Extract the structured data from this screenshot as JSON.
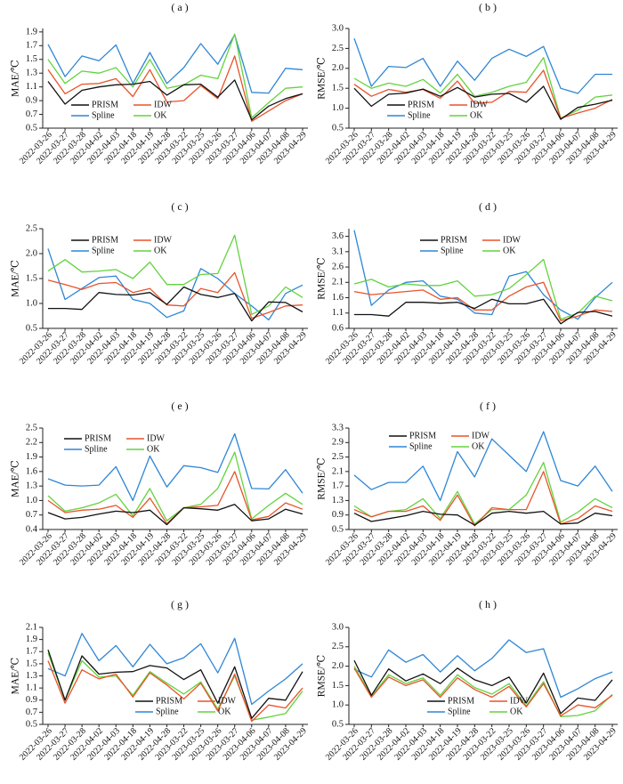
{
  "figure": {
    "series_colors": {
      "PRISM": "#111111",
      "IDW": "#e8532b",
      "Spline": "#2e86d6",
      "OK": "#62d33e"
    },
    "x_dates": [
      "2022-03-26",
      "2022-03-27",
      "2022-03-28",
      "2022-04-02",
      "2022-04-03",
      "2022-04-18",
      "2022-04-19",
      "2022-04-28",
      "2023-03-22",
      "2023-03-25",
      "2023-03-26",
      "2023-03-27",
      "2023-04-06",
      "2023-04-07",
      "2023-04-08",
      "2023-04-29"
    ]
  },
  "chart_data": [
    {
      "panel_label": "( a )",
      "type": "line",
      "ylabel": "MAE/℃",
      "ylim": [
        0.5,
        1.95
      ],
      "yticks": [
        "0.5",
        "0.7",
        "0.9",
        "1.1",
        "1.3",
        "1.5",
        "1.7",
        "1.9"
      ],
      "x": [
        "2022-03-26",
        "2022-03-27",
        "2022-03-28",
        "2022-04-02",
        "2022-04-03",
        "2022-04-18",
        "2022-04-19",
        "2022-04-28",
        "2023-03-22",
        "2023-03-25",
        "2023-03-26",
        "2023-03-27",
        "2023-04-06",
        "2023-04-07",
        "2023-04-08",
        "2023-04-29"
      ],
      "legend": {
        "position": "bottom-center-left",
        "entries": [
          "PRISM",
          "IDW",
          "Spline",
          "OK"
        ]
      },
      "series": [
        {
          "name": "PRISM",
          "color": "#111111",
          "values": [
            1.18,
            0.85,
            1.05,
            1.1,
            1.13,
            1.14,
            1.18,
            0.98,
            1.13,
            1.14,
            0.95,
            1.2,
            0.62,
            0.82,
            0.93,
            1.0
          ]
        },
        {
          "name": "IDW",
          "color": "#e8532b",
          "values": [
            1.35,
            1.0,
            1.14,
            1.15,
            1.22,
            0.96,
            1.35,
            0.88,
            0.9,
            1.12,
            0.93,
            1.55,
            0.6,
            0.75,
            0.9,
            1.0
          ]
        },
        {
          "name": "Spline",
          "color": "#2e86d6",
          "values": [
            1.72,
            1.25,
            1.55,
            1.48,
            1.71,
            1.15,
            1.6,
            1.15,
            1.38,
            1.73,
            1.43,
            1.86,
            1.02,
            1.01,
            1.37,
            1.35
          ]
        },
        {
          "name": "OK",
          "color": "#62d33e",
          "values": [
            1.5,
            1.15,
            1.33,
            1.3,
            1.38,
            1.1,
            1.5,
            1.08,
            1.13,
            1.27,
            1.22,
            1.87,
            0.65,
            0.87,
            1.08,
            1.1
          ]
        }
      ]
    },
    {
      "panel_label": "( b )",
      "type": "line",
      "ylabel": "RMSE/℃",
      "ylim": [
        0.5,
        3.0
      ],
      "yticks": [
        "0.5",
        "1.0",
        "1.5",
        "2.0",
        "2.5",
        "3.0"
      ],
      "x": [
        "2022-03-26",
        "2022-03-27",
        "2022-03-28",
        "2022-04-02",
        "2022-04-03",
        "2022-04-18",
        "2022-04-19",
        "2022-04-28",
        "2023-03-22",
        "2023-03-25",
        "2023-03-26",
        "2023-03-27",
        "2023-04-06",
        "2023-04-07",
        "2023-04-08",
        "2023-04-29"
      ],
      "legend": {
        "position": "bottom-center-left",
        "entries": [
          "PRISM",
          "IDW",
          "Spline",
          "OK"
        ]
      },
      "series": [
        {
          "name": "PRISM",
          "color": "#111111",
          "values": [
            1.5,
            1.05,
            1.35,
            1.38,
            1.48,
            1.3,
            1.52,
            1.28,
            1.35,
            1.37,
            1.15,
            1.55,
            0.72,
            1.02,
            1.1,
            1.2
          ]
        },
        {
          "name": "IDW",
          "color": "#e8532b",
          "values": [
            1.6,
            1.3,
            1.47,
            1.4,
            1.47,
            1.25,
            1.68,
            1.12,
            1.15,
            1.42,
            1.4,
            1.95,
            0.75,
            0.88,
            1.0,
            1.22
          ]
        },
        {
          "name": "Spline",
          "color": "#2e86d6",
          "values": [
            2.75,
            1.55,
            2.05,
            2.02,
            2.25,
            1.55,
            2.18,
            1.7,
            2.25,
            2.48,
            2.3,
            2.55,
            1.5,
            1.37,
            1.85,
            1.85
          ]
        },
        {
          "name": "OK",
          "color": "#62d33e",
          "values": [
            1.75,
            1.5,
            1.63,
            1.55,
            1.72,
            1.38,
            1.85,
            1.3,
            1.4,
            1.55,
            1.65,
            2.27,
            0.75,
            0.95,
            1.28,
            1.33
          ]
        }
      ]
    },
    {
      "panel_label": "( c )",
      "type": "line",
      "ylabel": "MAE/℃",
      "ylim": [
        0.5,
        2.5
      ],
      "yticks": [
        "0.5",
        "1.0",
        "1.5",
        "2.0",
        "2.5"
      ],
      "x": [
        "2022-03-26",
        "2022-03-27",
        "2022-03-28",
        "2022-04-02",
        "2022-04-03",
        "2022-04-18",
        "2022-04-19",
        "2022-04-28",
        "2023-03-22",
        "2023-03-25",
        "2023-03-26",
        "2023-03-27",
        "2023-04-06",
        "2023-04-07",
        "2023-04-08",
        "2023-04-29"
      ],
      "legend": {
        "position": "top-left",
        "entries": [
          "PRISM",
          "IDW",
          "Spline",
          "OK"
        ]
      },
      "series": [
        {
          "name": "PRISM",
          "color": "#111111",
          "values": [
            0.9,
            0.9,
            0.88,
            1.22,
            1.18,
            1.17,
            1.22,
            0.98,
            1.33,
            1.18,
            1.12,
            1.2,
            0.65,
            1.03,
            1.02,
            0.83
          ]
        },
        {
          "name": "IDW",
          "color": "#e8532b",
          "values": [
            1.47,
            1.38,
            1.28,
            1.4,
            1.42,
            1.22,
            1.3,
            0.97,
            0.95,
            1.3,
            1.22,
            1.62,
            0.7,
            0.82,
            0.95,
            0.97
          ]
        },
        {
          "name": "Spline",
          "color": "#2e86d6",
          "values": [
            2.1,
            1.08,
            1.3,
            1.52,
            1.55,
            1.08,
            1.0,
            0.72,
            0.85,
            1.7,
            1.5,
            1.2,
            0.95,
            0.67,
            1.2,
            1.37
          ]
        },
        {
          "name": "OK",
          "color": "#62d33e",
          "values": [
            1.65,
            1.88,
            1.63,
            1.65,
            1.68,
            1.5,
            1.83,
            1.38,
            1.38,
            1.58,
            1.6,
            2.37,
            0.78,
            0.95,
            1.33,
            1.12
          ]
        }
      ]
    },
    {
      "panel_label": "( d )",
      "type": "line",
      "ylabel": "RMSE/℃",
      "ylim": [
        0.6,
        3.85
      ],
      "yticks": [
        "0.6",
        "1.1",
        "1.6",
        "2.1",
        "2.6",
        "3.1",
        "3.6"
      ],
      "x": [
        "2022-03-26",
        "2022-03-27",
        "2022-03-28",
        "2022-04-02",
        "2022-04-03",
        "2022-04-18",
        "2022-04-19",
        "2022-04-28",
        "2023-03-22",
        "2023-03-25",
        "2023-03-26",
        "2023-03-27",
        "2023-04-06",
        "2023-04-07",
        "2023-04-08",
        "2023-04-29"
      ],
      "legend": {
        "position": "top-center",
        "entries": [
          "PRISM",
          "IDW",
          "Spline",
          "OK"
        ]
      },
      "series": [
        {
          "name": "PRISM",
          "color": "#111111",
          "values": [
            1.05,
            1.05,
            1.0,
            1.45,
            1.45,
            1.42,
            1.45,
            1.25,
            1.55,
            1.4,
            1.4,
            1.55,
            0.75,
            1.12,
            1.15,
            1.0
          ]
        },
        {
          "name": "IDW",
          "color": "#e8532b",
          "values": [
            1.8,
            1.7,
            1.75,
            1.8,
            1.85,
            1.55,
            1.6,
            1.2,
            1.2,
            1.65,
            1.95,
            2.1,
            0.85,
            1.0,
            1.2,
            1.15
          ]
        },
        {
          "name": "Spline",
          "color": "#2e86d6",
          "values": [
            3.8,
            1.35,
            1.85,
            2.1,
            2.15,
            1.65,
            1.55,
            1.1,
            1.05,
            2.3,
            2.45,
            1.7,
            1.2,
            0.9,
            1.6,
            2.1
          ]
        },
        {
          "name": "OK",
          "color": "#62d33e",
          "values": [
            2.05,
            2.2,
            1.95,
            2.05,
            2.0,
            2.0,
            2.15,
            1.65,
            1.7,
            1.9,
            2.35,
            2.85,
            0.9,
            1.1,
            1.65,
            1.5
          ]
        }
      ]
    },
    {
      "panel_label": "( e )",
      "type": "line",
      "ylabel": "MAE/℃",
      "ylim": [
        0.4,
        2.5
      ],
      "yticks": [
        "0.4",
        "0.7",
        "1.0",
        "1.3",
        "1.6",
        "1.9",
        "2.2",
        "2.5"
      ],
      "x": [
        "2022-03-26",
        "2022-03-27",
        "2022-03-28",
        "2022-04-02",
        "2022-04-03",
        "2022-04-18",
        "2022-04-19",
        "2022-04-28",
        "2023-03-22",
        "2023-03-25",
        "2023-03-26",
        "2023-03-27",
        "2023-04-06",
        "2023-04-07",
        "2023-04-08",
        "2023-04-29"
      ],
      "legend": {
        "position": "top-left",
        "entries": [
          "PRISM",
          "IDW",
          "Spline",
          "OK"
        ]
      },
      "series": [
        {
          "name": "PRISM",
          "color": "#111111",
          "values": [
            0.75,
            0.62,
            0.65,
            0.72,
            0.78,
            0.75,
            0.8,
            0.5,
            0.85,
            0.83,
            0.8,
            0.92,
            0.58,
            0.62,
            0.82,
            0.72
          ]
        },
        {
          "name": "IDW",
          "color": "#e8532b",
          "values": [
            1.0,
            0.75,
            0.8,
            0.82,
            0.9,
            0.65,
            1.05,
            0.52,
            0.85,
            0.87,
            0.9,
            1.6,
            0.6,
            0.67,
            0.95,
            0.82
          ]
        },
        {
          "name": "Spline",
          "color": "#2e86d6",
          "values": [
            1.45,
            1.32,
            1.3,
            1.32,
            1.7,
            1.0,
            1.92,
            1.28,
            1.72,
            1.68,
            1.58,
            2.38,
            1.25,
            1.24,
            1.64,
            1.15
          ]
        },
        {
          "name": "OK",
          "color": "#62d33e",
          "values": [
            1.1,
            0.78,
            0.85,
            0.95,
            1.13,
            0.68,
            1.25,
            0.58,
            0.85,
            0.92,
            1.25,
            2.0,
            0.62,
            0.9,
            1.15,
            0.92
          ]
        }
      ]
    },
    {
      "panel_label": "( f )",
      "type": "line",
      "ylabel": "RMSE/℃",
      "ylim": [
        0.5,
        3.3
      ],
      "yticks": [
        "0.5",
        "0.9",
        "1.3",
        "1.7",
        "2.1",
        "2.5",
        "2.9",
        "3.3"
      ],
      "x": [
        "2022-03-26",
        "2022-03-27",
        "2022-03-28",
        "2022-04-02",
        "2022-04-03",
        "2022-04-18",
        "2022-04-19",
        "2022-04-28",
        "2023-03-22",
        "2023-03-25",
        "2023-03-26",
        "2023-03-27",
        "2023-04-06",
        "2023-04-07",
        "2023-04-08",
        "2023-04-29"
      ],
      "legend": {
        "position": "top-left",
        "entries": [
          "PRISM",
          "IDW",
          "Spline",
          "OK"
        ]
      },
      "series": [
        {
          "name": "PRISM",
          "color": "#111111",
          "values": [
            0.95,
            0.72,
            0.8,
            0.88,
            1.0,
            0.92,
            0.9,
            0.62,
            0.95,
            1.0,
            0.95,
            1.0,
            0.65,
            0.68,
            0.95,
            0.88
          ]
        },
        {
          "name": "IDW",
          "color": "#e8532b",
          "values": [
            1.05,
            0.85,
            1.0,
            1.0,
            1.15,
            0.75,
            1.45,
            0.6,
            1.1,
            1.05,
            1.05,
            2.1,
            0.65,
            0.8,
            1.15,
            1.0
          ]
        },
        {
          "name": "Spline",
          "color": "#2e86d6",
          "values": [
            2.0,
            1.6,
            1.8,
            1.8,
            2.25,
            1.3,
            2.65,
            1.95,
            3.0,
            2.55,
            2.1,
            3.2,
            1.85,
            1.7,
            2.25,
            1.55
          ]
        },
        {
          "name": "OK",
          "color": "#62d33e",
          "values": [
            1.15,
            0.85,
            1.0,
            1.05,
            1.35,
            0.8,
            1.55,
            0.65,
            1.05,
            1.05,
            1.45,
            2.35,
            0.7,
            0.98,
            1.35,
            1.1
          ]
        }
      ]
    },
    {
      "panel_label": "( g )",
      "type": "line",
      "ylabel": "MAE/℃",
      "ylim": [
        0.5,
        2.1
      ],
      "yticks": [
        "0.5",
        "0.7",
        "0.9",
        "1.1",
        "1.3",
        "1.5",
        "1.7",
        "1.9",
        "2.1"
      ],
      "x": [
        "2022-03-26",
        "2022-03-27",
        "2022-03-28",
        "2022-04-02",
        "2022-04-03",
        "2022-04-18",
        "2022-04-19",
        "2022-04-28",
        "2023-03-22",
        "2023-03-25",
        "2023-03-26",
        "2023-03-27",
        "2023-04-06",
        "2023-04-07",
        "2023-04-08",
        "2023-04-29"
      ],
      "legend": {
        "position": "bottom-center",
        "entries": [
          "PRISM",
          "IDW",
          "Spline",
          "OK"
        ]
      },
      "series": [
        {
          "name": "PRISM",
          "color": "#111111",
          "values": [
            1.73,
            0.9,
            1.63,
            1.33,
            1.36,
            1.37,
            1.47,
            1.43,
            1.24,
            1.4,
            0.85,
            1.45,
            0.6,
            0.93,
            0.9,
            1.37
          ]
        },
        {
          "name": "IDW",
          "color": "#e8532b",
          "values": [
            1.55,
            0.85,
            1.4,
            1.25,
            1.33,
            0.95,
            1.35,
            1.15,
            0.92,
            1.18,
            0.72,
            1.33,
            0.55,
            0.82,
            0.77,
            1.1
          ]
        },
        {
          "name": "Spline",
          "color": "#2e86d6",
          "values": [
            1.42,
            1.3,
            2.0,
            1.55,
            1.8,
            1.45,
            1.82,
            1.5,
            1.6,
            1.83,
            1.35,
            1.92,
            0.83,
            1.05,
            1.25,
            1.5
          ]
        },
        {
          "name": "OK",
          "color": "#62d33e",
          "values": [
            1.68,
            0.9,
            1.55,
            1.28,
            1.3,
            0.98,
            1.37,
            1.18,
            1.0,
            1.2,
            0.75,
            1.3,
            0.57,
            0.62,
            0.68,
            1.05
          ]
        }
      ]
    },
    {
      "panel_label": "( h )",
      "type": "line",
      "ylabel": "RMSE/℃",
      "ylim": [
        0.5,
        3.0
      ],
      "yticks": [
        "0.5",
        "1.0",
        "1.5",
        "2.0",
        "2.5",
        "3.0"
      ],
      "x": [
        "2022-03-26",
        "2022-03-27",
        "2022-03-28",
        "2022-04-02",
        "2022-04-03",
        "2022-04-18",
        "2022-04-19",
        "2022-04-28",
        "2023-03-22",
        "2023-03-25",
        "2023-03-26",
        "2023-03-27",
        "2023-04-06",
        "2023-04-07",
        "2023-04-08",
        "2023-04-29"
      ],
      "legend": {
        "position": "bottom-center",
        "entries": [
          "PRISM",
          "IDW",
          "Spline",
          "OK"
        ]
      },
      "series": [
        {
          "name": "PRISM",
          "color": "#111111",
          "values": [
            2.15,
            1.25,
            1.93,
            1.62,
            1.8,
            1.55,
            1.95,
            1.65,
            1.5,
            1.72,
            1.05,
            1.82,
            0.78,
            1.18,
            1.12,
            1.65
          ]
        },
        {
          "name": "IDW",
          "color": "#e8532b",
          "values": [
            1.95,
            1.2,
            1.72,
            1.5,
            1.65,
            1.2,
            1.7,
            1.4,
            1.2,
            1.48,
            0.95,
            1.55,
            0.72,
            1.0,
            0.93,
            1.25
          ]
        },
        {
          "name": "Spline",
          "color": "#2e86d6",
          "values": [
            1.92,
            1.72,
            2.42,
            2.1,
            2.3,
            1.85,
            2.27,
            1.88,
            2.2,
            2.68,
            2.35,
            2.45,
            1.2,
            1.42,
            1.68,
            1.85
          ]
        },
        {
          "name": "OK",
          "color": "#62d33e",
          "values": [
            2.0,
            1.22,
            1.78,
            1.55,
            1.7,
            1.25,
            1.78,
            1.45,
            1.28,
            1.55,
            0.98,
            1.6,
            0.7,
            0.73,
            0.85,
            1.27
          ]
        }
      ]
    }
  ]
}
